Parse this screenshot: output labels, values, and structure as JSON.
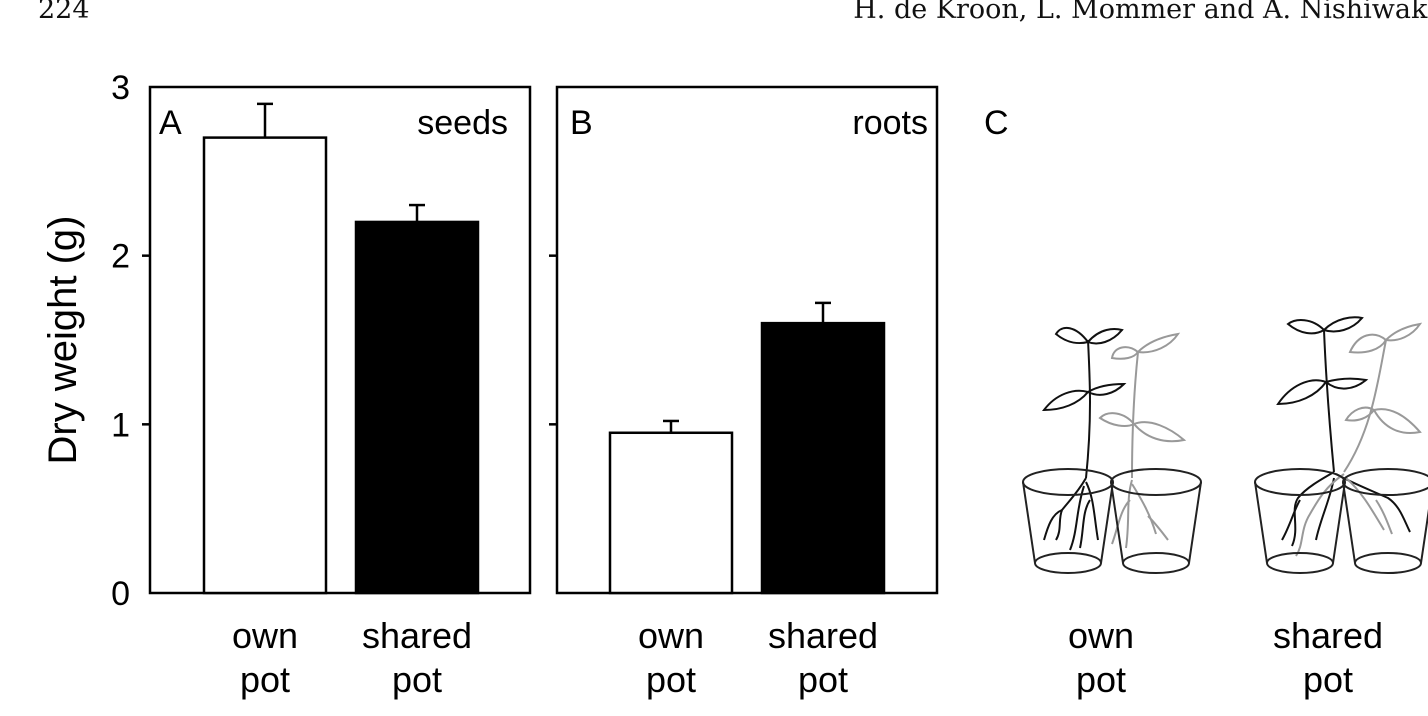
{
  "header": {
    "page_number": "224",
    "running_head": "H. de Kroon, L. Mommer and A. Nishiwaki"
  },
  "figure": {
    "ylabel": "Dry weight (g)",
    "yticks": [
      "0",
      "1",
      "2",
      "3"
    ]
  },
  "chart_data": [
    {
      "type": "bar",
      "panel": "A",
      "annotation": "seeds",
      "categories": [
        "own\npot",
        "shared\npot"
      ],
      "values": [
        2.7,
        2.2
      ],
      "error": [
        0.2,
        0.1
      ],
      "bar_colors": [
        "#ffffff",
        "#000000"
      ],
      "ylabel": "Dry weight (g)",
      "ylim": [
        0,
        3
      ],
      "yticks": [
        0,
        1,
        2,
        3
      ],
      "grid": false
    },
    {
      "type": "bar",
      "panel": "B",
      "annotation": "roots",
      "categories": [
        "own\npot",
        "shared\npot"
      ],
      "values": [
        0.95,
        1.6
      ],
      "error": [
        0.07,
        0.12
      ],
      "bar_colors": [
        "#ffffff",
        "#000000"
      ],
      "ylim": [
        0,
        3
      ],
      "yticks": [
        0,
        1,
        2,
        3
      ],
      "grid": false
    }
  ],
  "panel_c": {
    "label": "C",
    "illustration": "two bean plants growing in adjacent cups",
    "captions": [
      "own\npot",
      "shared\npot"
    ],
    "plant_colors": [
      "#111111",
      "#999999"
    ]
  }
}
